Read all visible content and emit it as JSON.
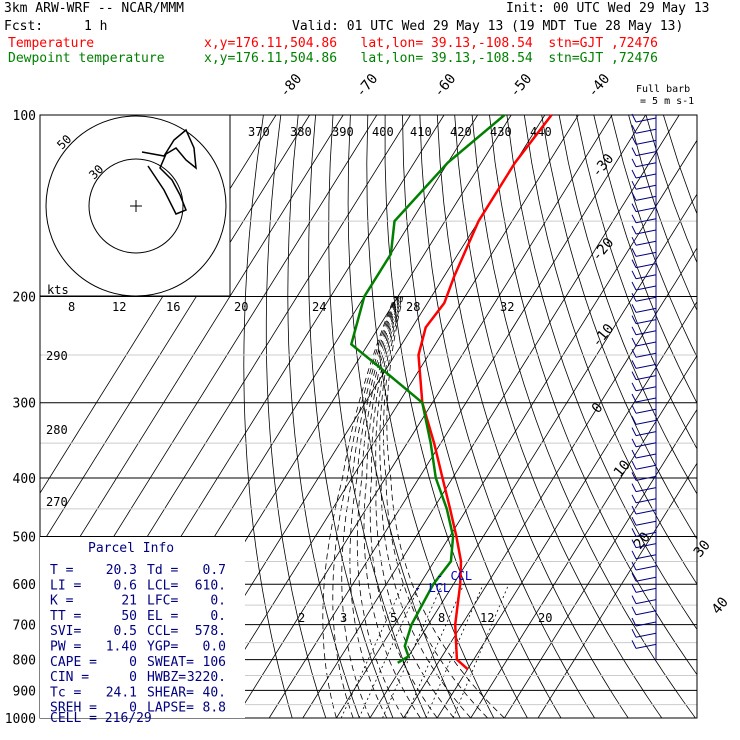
{
  "header": {
    "model": "3km ARW-WRF -- NCAR/MMM",
    "init": "Init: 00 UTC Wed 29 May 13",
    "fcst_label": "Fcst:",
    "fcst_value": "1 h",
    "valid": "Valid: 01 UTC Wed 29 May 13 (19 MDT Tue 28 May 13)",
    "lines": [
      {
        "name": "Temperature",
        "info": "x,y=176.11,504.86   lat,lon= 39.13,-108.54  stn=GJT ,72476",
        "color": "#ff0000"
      },
      {
        "name": "Dewpoint temperature",
        "info": "x,y=176.11,504.86   lat,lon= 39.13,-108.54  stn=GJT ,72476",
        "color": "#008000"
      }
    ]
  },
  "barb_legend": {
    "line1": "Full barb",
    "line2": "= 5 m s-1"
  },
  "chart_data": {
    "type": "line",
    "title": "",
    "ylabel": "",
    "xlabel": "",
    "y_axis": "pressure (hPa, log scale)",
    "pressure_levels": [
      100,
      200,
      300,
      400,
      500,
      600,
      700,
      800,
      900,
      1000
    ],
    "temperature_labels": [
      "-80",
      "-70",
      "-60",
      "-50",
      "-40",
      "-30",
      "-20",
      "-10",
      "0",
      "10",
      "20",
      "30",
      "40"
    ],
    "dry_adiabat_labels": [
      "290",
      "280",
      "270"
    ],
    "theta_e_labels": [
      "370",
      "380",
      "390",
      "400",
      "410",
      "420",
      "430",
      "440"
    ],
    "mixing_ratio_labels": [
      "2",
      "3",
      "5",
      "8",
      "12",
      "20"
    ],
    "series": [
      {
        "name": "Temperature",
        "color": "#ff0000",
        "points": [
          [
            100,
            -58
          ],
          [
            120,
            -60
          ],
          [
            150,
            -60
          ],
          [
            185,
            -57
          ],
          [
            205,
            -55
          ],
          [
            225,
            -56
          ],
          [
            250,
            -53
          ],
          [
            300,
            -43
          ],
          [
            350,
            -32
          ],
          [
            400,
            -23
          ],
          [
            450,
            -15
          ],
          [
            500,
            -8
          ],
          [
            550,
            -2
          ],
          [
            600,
            2
          ],
          [
            700,
            8
          ],
          [
            800,
            15
          ],
          [
            830,
            20
          ]
        ]
      },
      {
        "name": "Dewpoint temperature",
        "color": "#008000",
        "points": [
          [
            100,
            -72
          ],
          [
            120,
            -80
          ],
          [
            150,
            -85
          ],
          [
            170,
            -80
          ],
          [
            200,
            -80
          ],
          [
            240,
            -75
          ],
          [
            270,
            -58
          ],
          [
            300,
            -43
          ],
          [
            350,
            -33
          ],
          [
            400,
            -25
          ],
          [
            450,
            -16
          ],
          [
            500,
            -9
          ],
          [
            550,
            -5
          ],
          [
            600,
            -6
          ],
          [
            700,
            -5
          ],
          [
            760,
            -3
          ],
          [
            790,
            0
          ],
          [
            810,
            -2
          ]
        ]
      }
    ],
    "parcel_info": {
      "title": "Parcel Info",
      "rows": [
        [
          "T  =",
          "20.3",
          "Td =",
          "0.7"
        ],
        [
          "LI =",
          "0.6",
          "LCL=",
          "610."
        ],
        [
          "K  =",
          "21",
          "LFC=",
          "0."
        ],
        [
          "TT =",
          "50",
          "EL =",
          "0."
        ],
        [
          "SVI=",
          "0.5",
          "CCL=",
          "578."
        ],
        [
          "PW =",
          "1.40",
          "YGP=",
          "0.0"
        ],
        [
          "CAPE =",
          "0",
          "SWEAT=",
          "106"
        ],
        [
          "CIN =",
          "0",
          "HWBZ=",
          "3220."
        ],
        [
          "Tc =",
          "24.1",
          "SHEAR=",
          "40."
        ],
        [
          "SREH =",
          "0",
          "LAPSE=",
          "8.8"
        ]
      ],
      "cell": "CELL = 216/29"
    },
    "markers": {
      "ccl": "CCL",
      "lcl": "LCL"
    },
    "hodograph": {
      "kts_label": "kts",
      "ring_labels": [
        "50",
        "30"
      ],
      "temp_axis_labels": [
        "8",
        "12",
        "16",
        "20",
        "24",
        "28",
        "32"
      ]
    },
    "wind_barbs_count": 48
  }
}
